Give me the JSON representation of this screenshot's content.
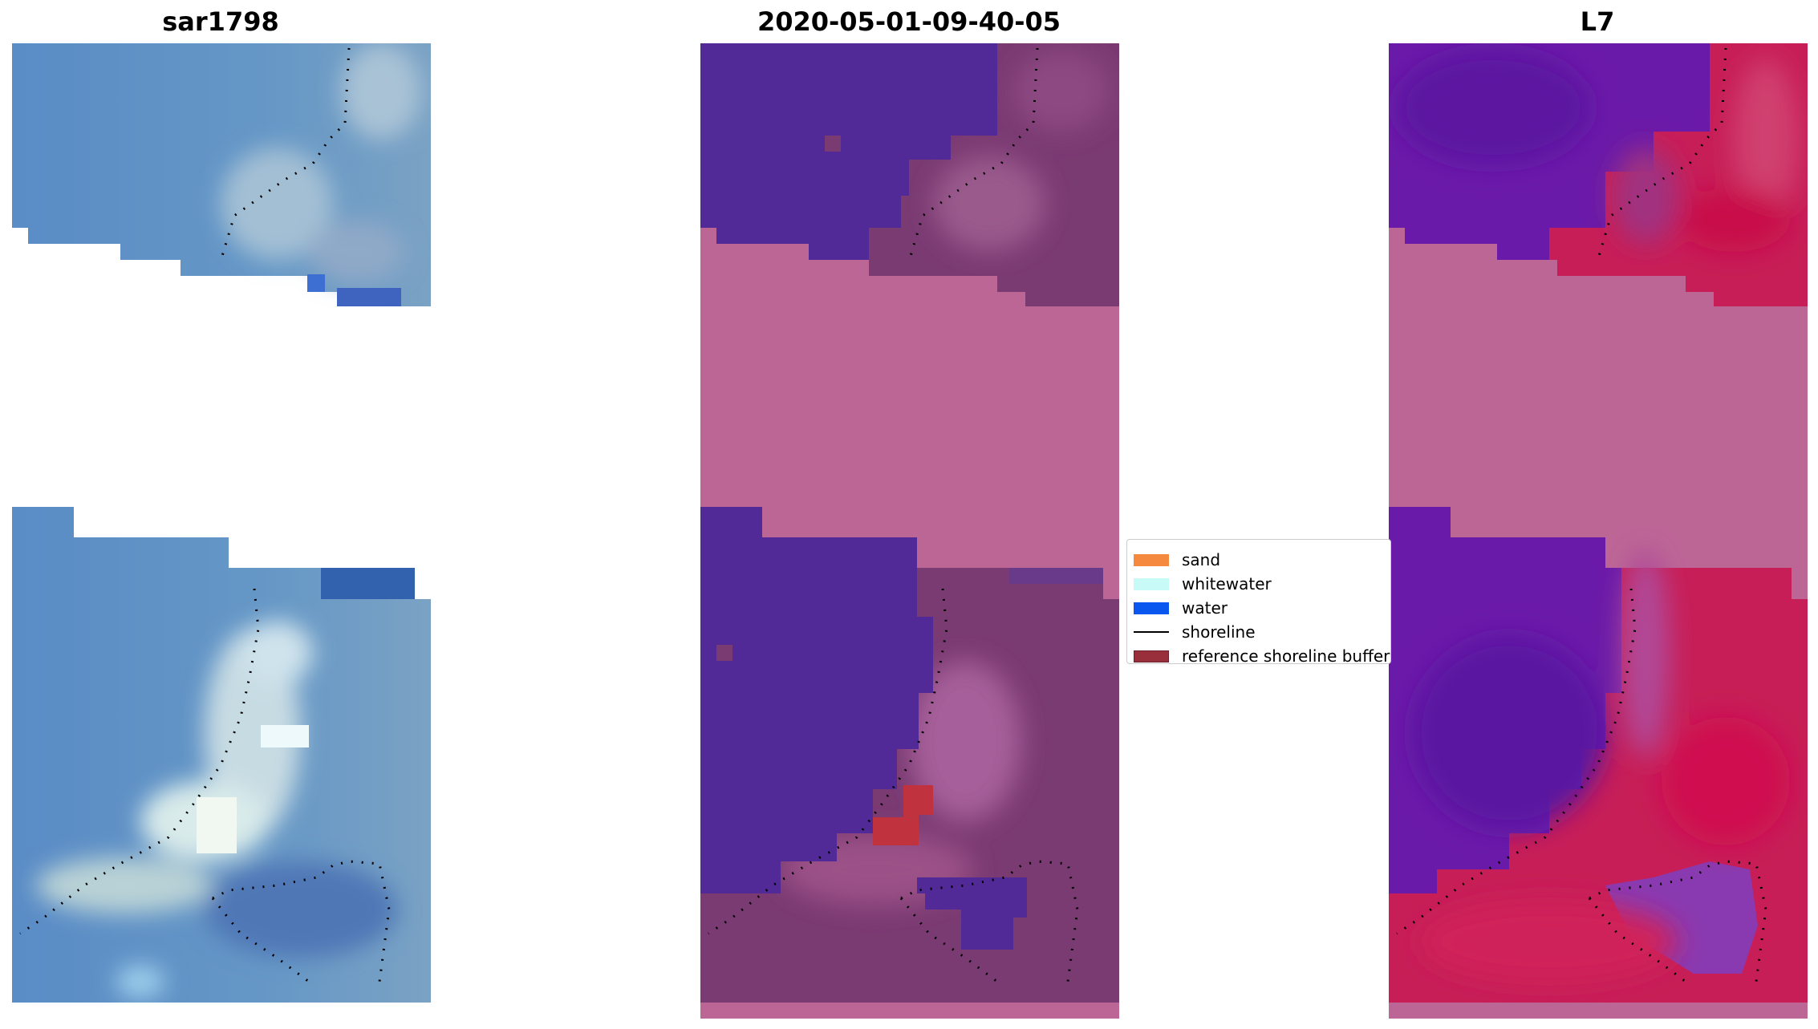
{
  "panels": {
    "rgb_title": "sar1798",
    "classified_title": "2020-05-01-09-40-05",
    "index_title": "L7"
  },
  "legend": {
    "items": [
      {
        "label": "sand",
        "color": "#f58a3f",
        "kind": "patch"
      },
      {
        "label": "whitewater",
        "color": "#c8fbf8",
        "kind": "patch"
      },
      {
        "label": "water",
        "color": "#0a57f0",
        "kind": "patch"
      },
      {
        "label": "shoreline",
        "color": "#000000",
        "kind": "line"
      },
      {
        "label": "reference shoreline buffer",
        "color": "#9a2f3c",
        "kind": "patch"
      }
    ]
  },
  "colors": {
    "rgb_water": "#5b8bc4",
    "rgb_bright": "#e8f4f2",
    "class_water": "#512a97",
    "class_land": "#7a3a72",
    "class_nodata": "#bc6696",
    "index_water": "#6a1aa8",
    "index_land": "#c71e57",
    "index_nodata": "#bc6696",
    "buffer_red": "#c0323e"
  }
}
